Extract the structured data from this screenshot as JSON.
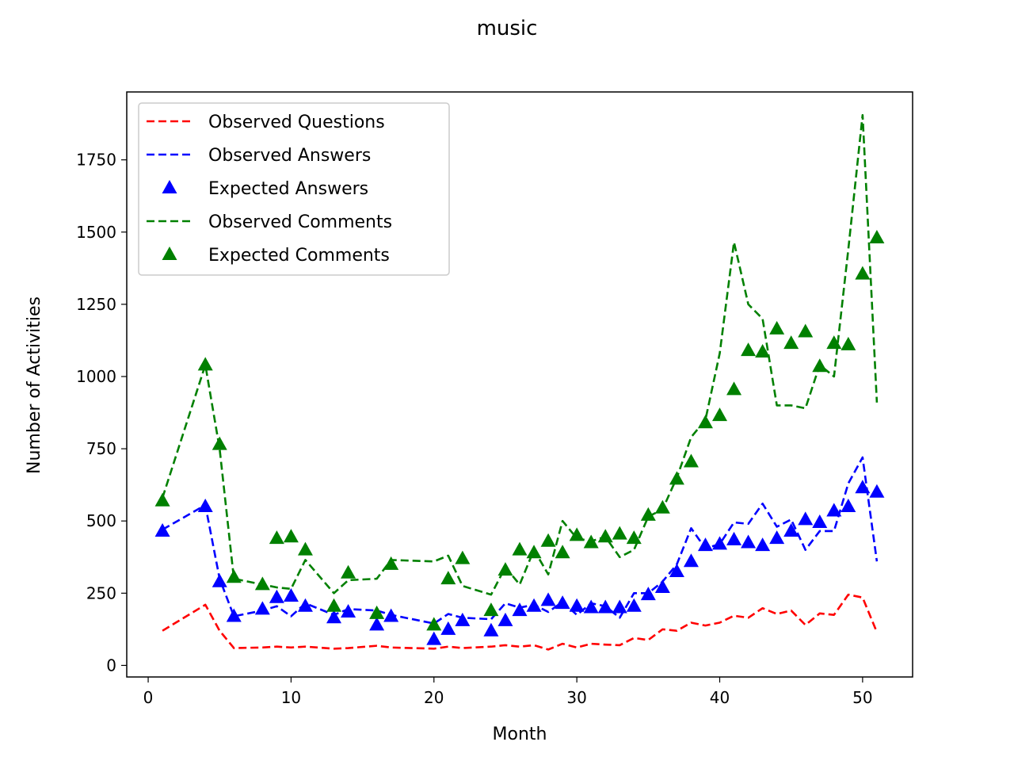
{
  "chart_data": {
    "type": "line",
    "title": "music",
    "xlabel": "Month",
    "ylabel": "Number of Activities",
    "xlim": [
      -1.5,
      53.5
    ],
    "ylim": [
      -40,
      1985
    ],
    "xticks": [
      0,
      10,
      20,
      30,
      40,
      50
    ],
    "yticks": [
      0,
      250,
      500,
      750,
      1000,
      1250,
      1500,
      1750
    ],
    "grid": false,
    "legend_position": "upper-left",
    "series": [
      {
        "name": "Observed Questions",
        "kind": "line",
        "style": "dashed",
        "color": "#ff0000",
        "x": [
          1,
          4,
          5,
          6,
          8,
          9,
          10,
          11,
          13,
          14,
          16,
          17,
          20,
          21,
          22,
          24,
          25,
          26,
          27,
          28,
          29,
          30,
          31,
          32,
          33,
          34,
          35,
          36,
          37,
          38,
          39,
          40,
          41,
          42,
          43,
          44,
          45,
          46,
          47,
          48,
          49,
          50,
          51
        ],
        "y": [
          120,
          210,
          120,
          60,
          62,
          65,
          62,
          65,
          58,
          60,
          68,
          62,
          58,
          65,
          60,
          65,
          70,
          65,
          70,
          55,
          75,
          62,
          75,
          72,
          70,
          95,
          88,
          125,
          120,
          148,
          138,
          148,
          172,
          165,
          198,
          178,
          190,
          140,
          180,
          175,
          245,
          235,
          115
        ]
      },
      {
        "name": "Observed Answers",
        "kind": "line",
        "style": "dashed",
        "color": "#0000ff",
        "x": [
          1,
          4,
          5,
          6,
          8,
          9,
          10,
          11,
          13,
          14,
          16,
          17,
          20,
          21,
          22,
          24,
          25,
          26,
          27,
          28,
          29,
          30,
          31,
          32,
          33,
          34,
          35,
          36,
          37,
          38,
          39,
          40,
          41,
          42,
          43,
          44,
          45,
          46,
          47,
          48,
          49,
          50,
          51
        ],
        "y": [
          470,
          555,
          300,
          170,
          190,
          205,
          170,
          215,
          175,
          195,
          190,
          175,
          145,
          178,
          165,
          160,
          215,
          200,
          210,
          185,
          220,
          175,
          215,
          205,
          165,
          250,
          250,
          290,
          350,
          475,
          405,
          420,
          495,
          490,
          560,
          480,
          505,
          400,
          465,
          465,
          630,
          720,
          360
        ]
      },
      {
        "name": "Expected Answers",
        "kind": "markers",
        "marker": "triangle",
        "color": "#0000ff",
        "x": [
          1,
          4,
          5,
          6,
          8,
          9,
          10,
          11,
          13,
          14,
          16,
          17,
          20,
          21,
          22,
          24,
          25,
          26,
          27,
          28,
          29,
          30,
          31,
          32,
          33,
          34,
          35,
          36,
          37,
          38,
          39,
          40,
          41,
          42,
          43,
          44,
          45,
          46,
          47,
          48,
          49,
          50,
          51
        ],
        "y": [
          465,
          550,
          290,
          170,
          195,
          235,
          240,
          205,
          165,
          185,
          140,
          170,
          90,
          125,
          155,
          120,
          155,
          190,
          205,
          225,
          215,
          205,
          200,
          200,
          200,
          205,
          245,
          270,
          325,
          360,
          415,
          420,
          435,
          425,
          415,
          440,
          465,
          505,
          495,
          535,
          550,
          615,
          600
        ]
      },
      {
        "name": "Observed Comments",
        "kind": "line",
        "style": "dashed",
        "color": "#008000",
        "x": [
          1,
          4,
          5,
          6,
          8,
          9,
          10,
          11,
          13,
          14,
          16,
          17,
          20,
          21,
          22,
          24,
          25,
          26,
          27,
          28,
          29,
          30,
          31,
          32,
          33,
          34,
          35,
          36,
          37,
          38,
          39,
          40,
          41,
          42,
          43,
          44,
          45,
          46,
          47,
          48,
          49,
          50,
          51
        ],
        "y": [
          580,
          1040,
          750,
          300,
          280,
          270,
          265,
          365,
          250,
          295,
          300,
          365,
          360,
          380,
          275,
          245,
          340,
          280,
          400,
          315,
          500,
          440,
          430,
          445,
          375,
          400,
          515,
          540,
          650,
          790,
          850,
          1080,
          1465,
          1250,
          1200,
          900,
          900,
          890,
          1040,
          1000,
          1440,
          1905,
          910
        ]
      },
      {
        "name": "Expected Comments",
        "kind": "markers",
        "marker": "triangle",
        "color": "#008000",
        "x": [
          1,
          4,
          5,
          6,
          8,
          9,
          10,
          11,
          13,
          14,
          16,
          17,
          20,
          21,
          22,
          24,
          25,
          26,
          27,
          28,
          29,
          30,
          31,
          32,
          33,
          34,
          35,
          36,
          37,
          38,
          39,
          40,
          41,
          42,
          43,
          44,
          45,
          46,
          47,
          48,
          49,
          50,
          51
        ],
        "y": [
          570,
          1040,
          765,
          305,
          280,
          440,
          445,
          400,
          205,
          320,
          180,
          350,
          140,
          300,
          370,
          190,
          330,
          400,
          390,
          430,
          390,
          450,
          425,
          445,
          455,
          440,
          520,
          545,
          645,
          705,
          840,
          865,
          955,
          1090,
          1085,
          1165,
          1115,
          1155,
          1035,
          1115,
          1110,
          1355,
          1480
        ]
      }
    ]
  }
}
